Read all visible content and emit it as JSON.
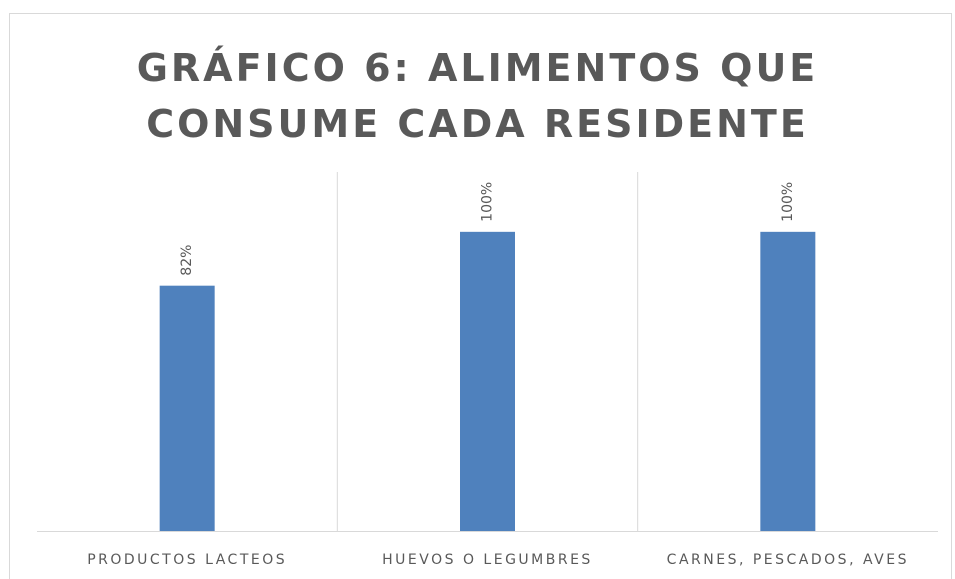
{
  "chart_data": {
    "type": "bar",
    "title": "GRÁFICO 6: ALIMENTOS QUE CONSUME CADA RESIDENTE",
    "categories": [
      "PRODUCTOS LACTEOS",
      "HUEVOS O LEGUMBRES",
      "CARNES, PESCADOS, AVES"
    ],
    "values": [
      82,
      100,
      100
    ],
    "value_labels": [
      "82%",
      "100%",
      "100%"
    ],
    "color": "#4f81bd",
    "ylim": [
      0,
      120
    ]
  }
}
